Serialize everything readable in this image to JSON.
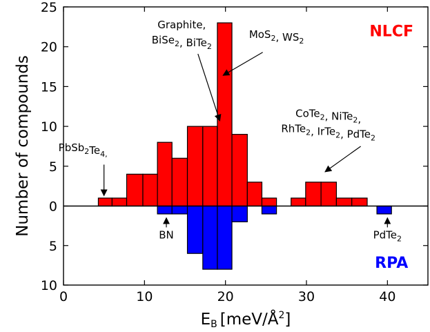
{
  "chart_data": {
    "type": "bar",
    "xlabel_main": "E",
    "xlabel_sub": "B",
    "xlabel_unit": "[meV/Å",
    "xlabel_sup": "2",
    "xlabel_close": "]",
    "ylabel": "Number of compounds",
    "xlim": [
      0,
      45
    ],
    "ylim_top": [
      0,
      25
    ],
    "ylim_bottom": [
      0,
      10
    ],
    "x_ticks": [
      0,
      10,
      20,
      30,
      40
    ],
    "y_ticks_top": [
      0,
      5,
      10,
      15,
      20,
      25
    ],
    "y_ticks_bottom": [
      5,
      10
    ],
    "series": [
      {
        "name": "NLCF",
        "color": "#ff0000",
        "direction": "up",
        "bins": [
          {
            "x0": 4.3,
            "x1": 6.0,
            "value": 1
          },
          {
            "x0": 6.0,
            "x1": 7.8,
            "value": 1
          },
          {
            "x0": 7.8,
            "x1": 9.8,
            "value": 4
          },
          {
            "x0": 9.8,
            "x1": 11.6,
            "value": 4
          },
          {
            "x0": 11.6,
            "x1": 13.4,
            "value": 8
          },
          {
            "x0": 13.4,
            "x1": 15.3,
            "value": 6
          },
          {
            "x0": 15.3,
            "x1": 17.2,
            "value": 10
          },
          {
            "x0": 17.2,
            "x1": 19.0,
            "value": 10
          },
          {
            "x0": 19.0,
            "x1": 20.8,
            "value": 23
          },
          {
            "x0": 20.8,
            "x1": 22.7,
            "value": 9
          },
          {
            "x0": 22.7,
            "x1": 24.5,
            "value": 3
          },
          {
            "x0": 24.5,
            "x1": 26.3,
            "value": 1
          },
          {
            "x0": 26.3,
            "x1": 28.1,
            "value": 0
          },
          {
            "x0": 28.1,
            "x1": 29.9,
            "value": 1
          },
          {
            "x0": 29.9,
            "x1": 31.8,
            "value": 3
          },
          {
            "x0": 31.8,
            "x1": 33.7,
            "value": 3
          },
          {
            "x0": 33.7,
            "x1": 35.6,
            "value": 1
          },
          {
            "x0": 35.6,
            "x1": 37.5,
            "value": 1
          }
        ]
      },
      {
        "name": "RPA",
        "color": "#0000ff",
        "direction": "down",
        "bins": [
          {
            "x0": 11.6,
            "x1": 13.4,
            "value": 1
          },
          {
            "x0": 13.4,
            "x1": 15.3,
            "value": 1
          },
          {
            "x0": 15.3,
            "x1": 17.2,
            "value": 6
          },
          {
            "x0": 17.2,
            "x1": 19.0,
            "value": 8
          },
          {
            "x0": 19.0,
            "x1": 20.8,
            "value": 8
          },
          {
            "x0": 20.8,
            "x1": 22.7,
            "value": 2
          },
          {
            "x0": 24.5,
            "x1": 26.3,
            "value": 1
          },
          {
            "x0": 38.7,
            "x1": 40.5,
            "value": 1
          }
        ]
      }
    ],
    "annotations": [
      {
        "id": "pbsb2te4",
        "lines": [
          [
            [
              "PbSb",
              ""
            ],
            [
              "2",
              "sub"
            ],
            [
              "Te",
              ""
            ],
            [
              "4,",
              "sub"
            ]
          ]
        ],
        "text_x": 2.4,
        "text_y": 6.9,
        "arrow": [
          5.0,
          5.2,
          5.0,
          1.3
        ]
      },
      {
        "id": "graphite",
        "lines": [
          [
            [
              "Graphite,",
              ""
            ]
          ],
          [
            [
              "BiSe",
              ""
            ],
            [
              "2",
              "sub"
            ],
            [
              ", BiTe",
              ""
            ],
            [
              "2",
              "sub"
            ]
          ]
        ],
        "text_x": 14.6,
        "text_y": 22.3,
        "arrow": [
          16.6,
          19.1,
          19.3,
          10.7
        ]
      },
      {
        "id": "mos2",
        "lines": [
          [
            [
              "MoS",
              ""
            ],
            [
              "2",
              "sub"
            ],
            [
              ", WS",
              ""
            ],
            [
              "2",
              "sub"
            ]
          ]
        ],
        "text_x": 26.3,
        "text_y": 21.1,
        "arrow": [
          24.6,
          19.3,
          19.7,
          16.4
        ]
      },
      {
        "id": "cote2",
        "lines": [
          [
            [
              "CoTe",
              ""
            ],
            [
              "2",
              "sub"
            ],
            [
              ", NiTe",
              ""
            ],
            [
              "2",
              "sub"
            ],
            [
              ",",
              ""
            ]
          ],
          [
            [
              "RhTe",
              ""
            ],
            [
              "2",
              "sub"
            ],
            [
              ", IrTe",
              ""
            ],
            [
              "2",
              "sub"
            ],
            [
              ", PdTe",
              ""
            ],
            [
              "2",
              "sub"
            ]
          ]
        ],
        "text_x": 32.7,
        "text_y": 11.2,
        "arrow": [
          36.7,
          7.5,
          32.3,
          4.3
        ]
      },
      {
        "id": "bn",
        "lines": [
          [
            [
              "BN",
              ""
            ]
          ]
        ],
        "text_x": 12.7,
        "text_y": -4.1,
        "arrow": [
          12.7,
          -2.7,
          12.7,
          -1.5
        ]
      },
      {
        "id": "pdte2",
        "lines": [
          [
            [
              "PdTe",
              ""
            ],
            [
              "2",
              "sub"
            ]
          ]
        ],
        "text_x": 40.0,
        "text_y": -4.1,
        "arrow": [
          40.0,
          -2.7,
          40.0,
          -1.5
        ]
      }
    ],
    "series_labels": [
      {
        "text": "NLCF",
        "color": "#ff0000",
        "x": 40.5,
        "y": 21.3
      },
      {
        "text": "RPA",
        "color": "#0000ff",
        "x": 40.5,
        "y": -7.8
      }
    ]
  }
}
